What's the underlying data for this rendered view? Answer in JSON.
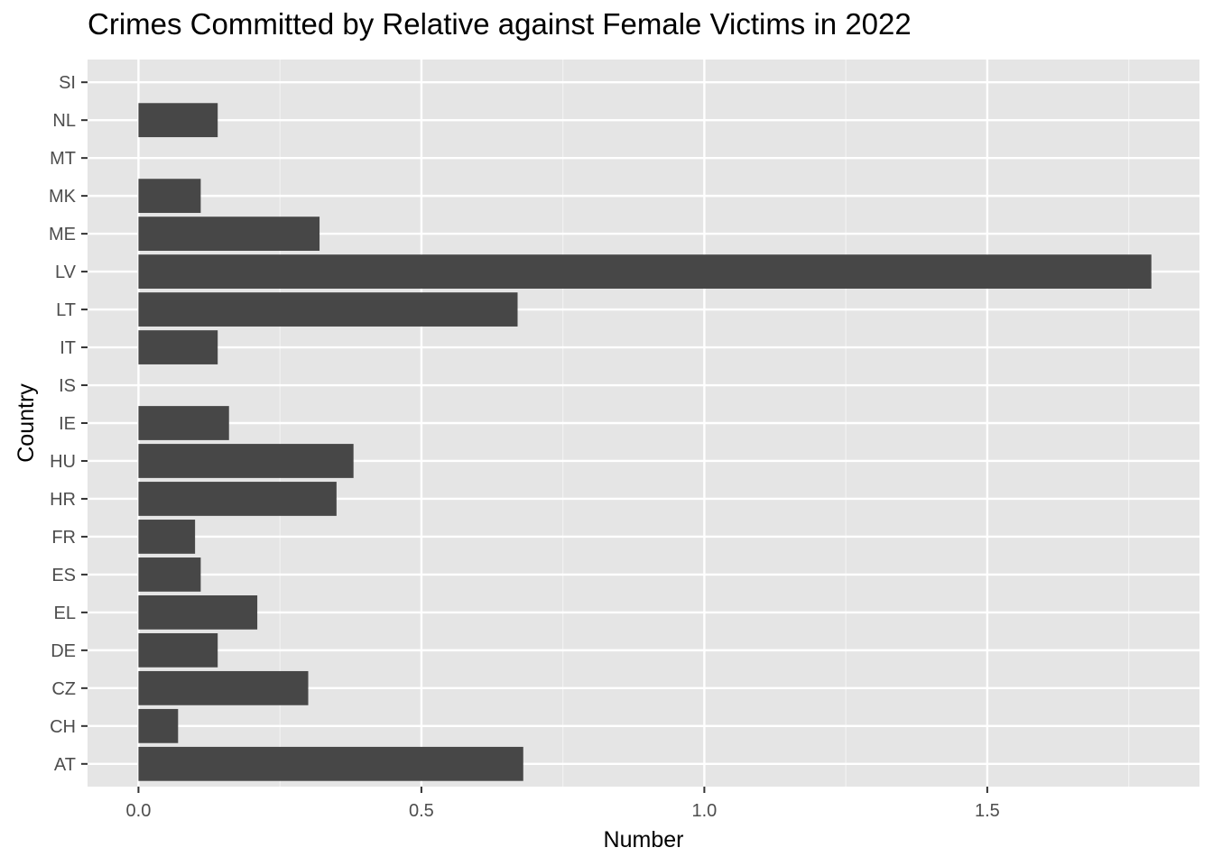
{
  "chart_data": {
    "type": "bar",
    "orientation": "horizontal",
    "title": "Crimes Committed by Relative against Female Victims in 2022",
    "xlabel": "Number",
    "ylabel": "Country",
    "categories": [
      "AT",
      "CH",
      "CZ",
      "DE",
      "EL",
      "ES",
      "FR",
      "HR",
      "HU",
      "IE",
      "IS",
      "IT",
      "LT",
      "LV",
      "ME",
      "MK",
      "MT",
      "NL",
      "SI"
    ],
    "values": [
      0.68,
      0.07,
      0.3,
      0.14,
      0.21,
      0.11,
      0.1,
      0.35,
      0.38,
      0.16,
      0.0,
      0.14,
      0.67,
      1.79,
      0.32,
      0.11,
      0.0,
      0.14,
      0.0
    ],
    "xlim": [
      -0.09,
      1.875
    ],
    "x_ticks": [
      0.0,
      0.5,
      1.0,
      1.5
    ],
    "x_tick_labels": [
      "0.0",
      "0.5",
      "1.0",
      "1.5"
    ],
    "grid": true,
    "legend": "none",
    "colors": {
      "bar": "#474747",
      "panel_background": "#e5e5e5",
      "grid_major": "#ffffff",
      "grid_minor": "#f2f2f2",
      "tick_text": "#4d4d4d",
      "tick_mark": "#333333"
    }
  }
}
